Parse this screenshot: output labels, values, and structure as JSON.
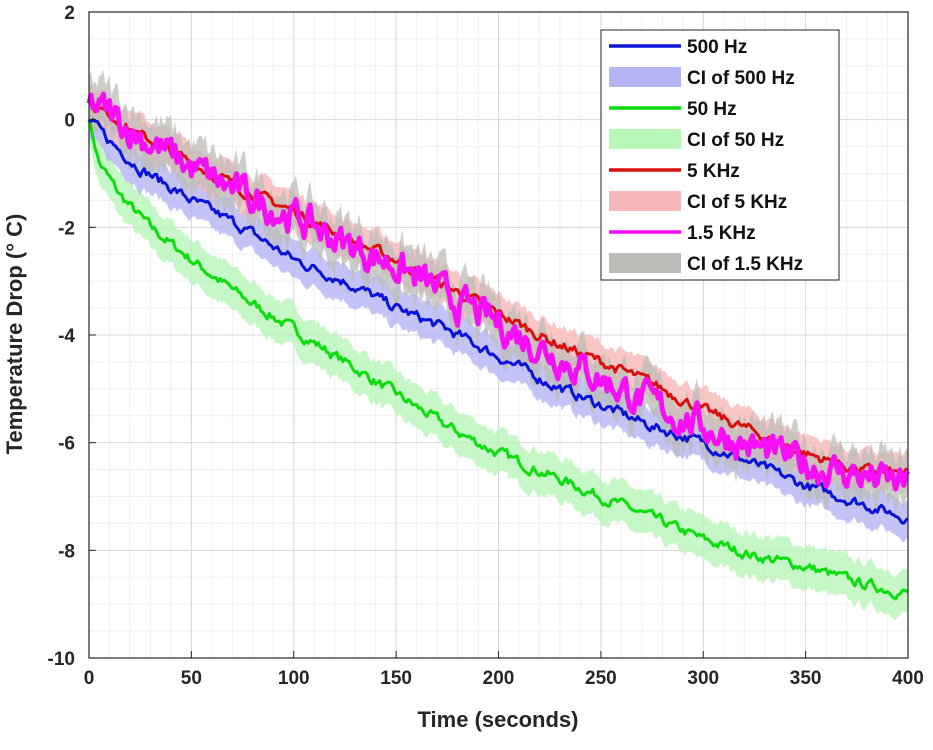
{
  "chart_data": {
    "type": "line",
    "xlabel": "Time (seconds)",
    "ylabel": "Temperature Drop (° C)",
    "xlim": [
      0,
      400
    ],
    "ylim": [
      -10,
      2
    ],
    "xticks": [
      0,
      50,
      100,
      150,
      200,
      250,
      300,
      350,
      400
    ],
    "yticks": [
      2,
      0,
      -2,
      -4,
      -6,
      -8,
      -10
    ],
    "grid": true,
    "legend_position": "top-right",
    "series": [
      {
        "name": "500 Hz",
        "ci_name": "CI of 500 Hz",
        "color": "#0a14d6",
        "ci_color": "#b4b4f5",
        "x": [
          0,
          10,
          25,
          50,
          75,
          100,
          125,
          150,
          175,
          200,
          225,
          250,
          275,
          300,
          325,
          350,
          375,
          400
        ],
        "y": [
          0,
          -0.4,
          -0.9,
          -1.5,
          -2.0,
          -2.6,
          -3.0,
          -3.5,
          -3.9,
          -4.4,
          -4.9,
          -5.3,
          -5.7,
          -6.0,
          -6.4,
          -6.8,
          -7.1,
          -7.4
        ],
        "ci_half_width": 0.35
      },
      {
        "name": "50 Hz",
        "ci_name": "CI of 50 Hz",
        "color": "#0fdc0f",
        "ci_color": "#b8f5b8",
        "x": [
          0,
          5,
          15,
          30,
          50,
          75,
          100,
          125,
          150,
          175,
          200,
          225,
          250,
          275,
          300,
          325,
          350,
          375,
          400
        ],
        "y": [
          0,
          -0.8,
          -1.4,
          -2.0,
          -2.6,
          -3.3,
          -3.9,
          -4.5,
          -5.1,
          -5.7,
          -6.2,
          -6.6,
          -7.0,
          -7.4,
          -7.8,
          -8.1,
          -8.3,
          -8.6,
          -8.8
        ],
        "ci_half_width": 0.4
      },
      {
        "name": "5 KHz",
        "ci_name": "CI of 5 KHz",
        "color": "#dc0f0f",
        "ci_color": "#f7b8b8",
        "x": [
          0,
          10,
          25,
          50,
          75,
          100,
          125,
          150,
          175,
          200,
          225,
          250,
          275,
          300,
          325,
          350,
          375,
          400
        ],
        "y": [
          0.3,
          0.1,
          -0.3,
          -0.8,
          -1.3,
          -1.7,
          -2.2,
          -2.6,
          -3.1,
          -3.6,
          -4.1,
          -4.5,
          -4.9,
          -5.4,
          -5.8,
          -6.2,
          -6.5,
          -6.6
        ],
        "ci_half_width": 0.35
      },
      {
        "name": "1.5 KHz",
        "ci_name": "CI of 1.5 KHz",
        "color": "#f50ff5",
        "ci_color": "#bcbcb8",
        "x": [
          0,
          10,
          25,
          50,
          75,
          100,
          125,
          150,
          175,
          200,
          225,
          250,
          275,
          300,
          325,
          350,
          375,
          400
        ],
        "y": [
          0.3,
          0.1,
          -0.3,
          -0.9,
          -1.4,
          -1.8,
          -2.3,
          -2.7,
          -3.3,
          -3.8,
          -4.3,
          -4.8,
          -5.3,
          -5.7,
          -6.1,
          -6.4,
          -6.6,
          -6.8
        ],
        "ci_half_width": 0.45
      }
    ]
  }
}
